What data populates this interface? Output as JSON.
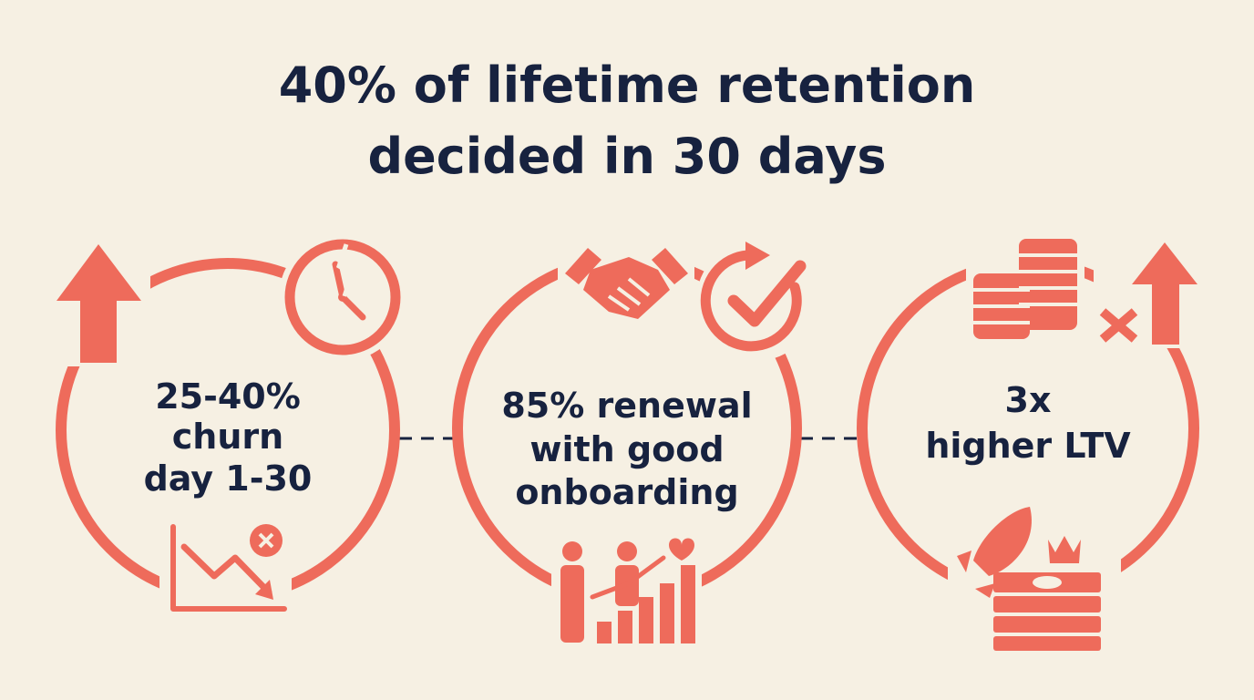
{
  "title": [
    "40% of lifetime retention",
    "decided in 30 days"
  ],
  "stats": [
    {
      "lines": [
        "25-40%",
        "churn",
        "day 1-30"
      ]
    },
    {
      "lines": [
        "85% renewal",
        "with good",
        "onboarding"
      ]
    },
    {
      "lines": [
        "3x",
        "higher LTV"
      ]
    }
  ]
}
